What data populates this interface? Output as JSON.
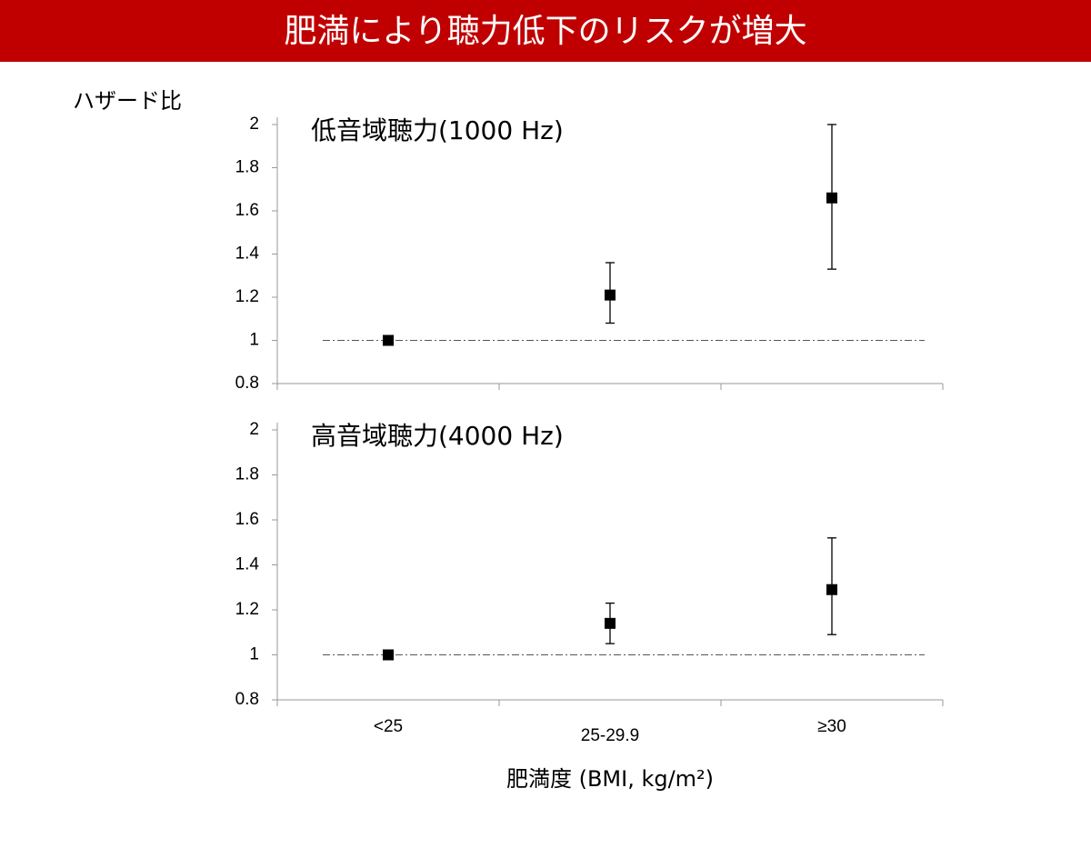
{
  "header": {
    "title": "肥満により聴力低下のリスクが増大"
  },
  "chart_data": [
    {
      "type": "scatter",
      "title": "低音域聴力(1000 Hz)",
      "ylabel": "ハザード比",
      "categories": [
        null,
        null,
        null
      ],
      "series": [
        {
          "color": "#000000",
          "values": [
            1.0,
            1.21,
            1.66
          ],
          "lower": [
            null,
            1.08,
            1.33
          ],
          "upper": [
            null,
            1.36,
            2.0
          ]
        }
      ],
      "hline": 1,
      "ylim": [
        0.8,
        2
      ],
      "yticks": [
        0.8,
        1,
        1.2,
        1.4,
        1.6,
        1.8,
        2
      ]
    },
    {
      "type": "scatter",
      "title": "高音域聴力(4000 Hz)",
      "xlabel": "肥満度 (BMI, kg/m²)",
      "categories": [
        "<25",
        "25-29.9",
        "≥30"
      ],
      "series": [
        {
          "color": "#000000",
          "values": [
            1.0,
            1.14,
            1.29
          ],
          "lower": [
            null,
            1.05,
            1.09
          ],
          "upper": [
            null,
            1.23,
            1.52
          ]
        }
      ],
      "hline": 1,
      "ylim": [
        0.8,
        2
      ],
      "yticks": [
        0.8,
        1,
        1.2,
        1.4,
        1.6,
        1.8,
        2
      ]
    }
  ]
}
